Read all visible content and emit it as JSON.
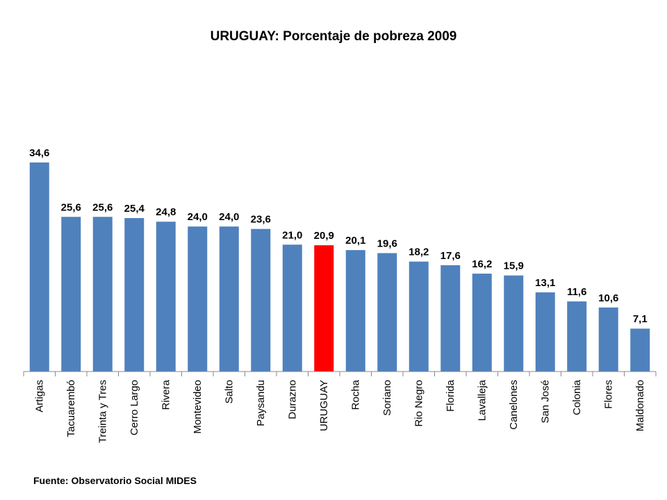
{
  "chart_data": {
    "type": "bar",
    "title": "URUGUAY: Porcentaje de pobreza 2009",
    "categories": [
      "Artigas",
      "Tacuarembó",
      "Treinta y Tres",
      "Cerro Largo",
      "Rivera",
      "Montevideo",
      "Salto",
      "Paysandu",
      "Durazno",
      "URUGUAY",
      "Rocha",
      "Soriano",
      "Rio Negro",
      "Florida",
      "Lavalleja",
      "Canelones",
      "San José",
      "Colonia",
      "Flores",
      "Maldonado"
    ],
    "values": [
      34.6,
      25.6,
      25.6,
      25.4,
      24.8,
      24.0,
      24.0,
      23.6,
      21.0,
      20.9,
      20.1,
      19.6,
      18.2,
      17.6,
      16.2,
      15.9,
      13.1,
      11.6,
      10.6,
      7.1
    ],
    "value_labels": [
      "34,6",
      "25,6",
      "25,6",
      "25,4",
      "24,8",
      "24,0",
      "24,0",
      "23,6",
      "21,0",
      "20,9",
      "20,1",
      "19,6",
      "18,2",
      "17,6",
      "16,2",
      "15,9",
      "13,1",
      "11,6",
      "10,6",
      "7,1"
    ],
    "highlight_index": 9,
    "bar_color": "#4F81BD",
    "highlight_color": "#FF0000",
    "xlabel": "",
    "ylabel": "",
    "grid": false,
    "legend": "none"
  },
  "source": "Fuente: Observatorio Social MIDES"
}
